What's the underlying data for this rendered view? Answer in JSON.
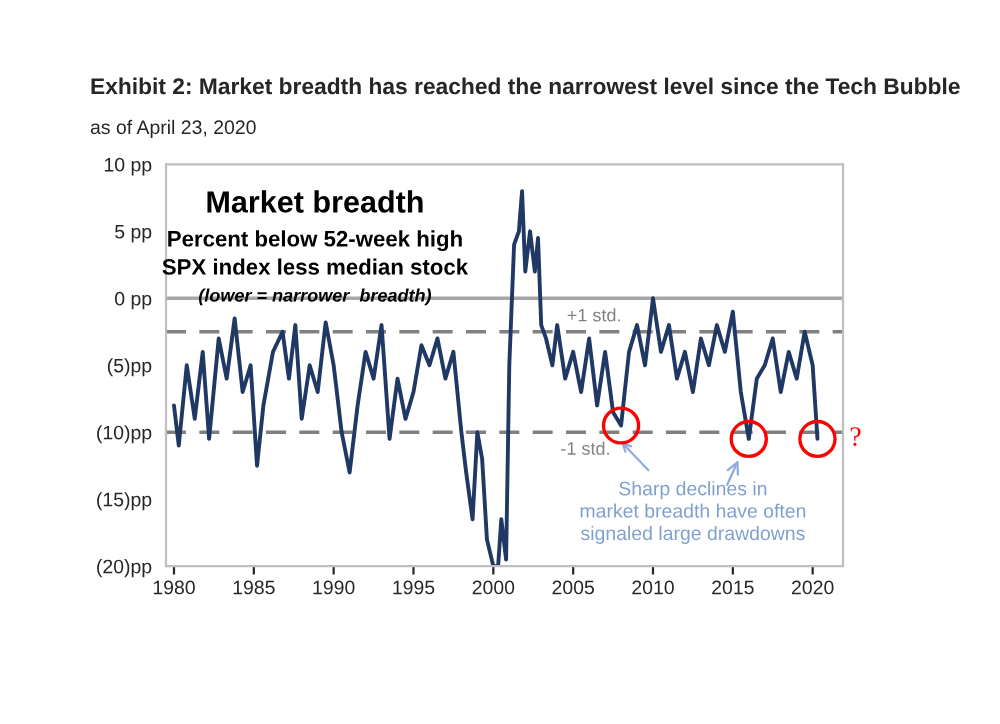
{
  "chart_data": {
    "type": "line",
    "title": "Exhibit 2: Market breadth has reached the narrowest level since the Tech Bubble",
    "subtitle": "as of April 23, 2020",
    "x": [
      1980.0,
      1980.3,
      1980.8,
      1981.3,
      1981.8,
      1982.2,
      1982.8,
      1983.3,
      1983.8,
      1984.3,
      1984.8,
      1985.2,
      1985.6,
      1986.2,
      1986.8,
      1987.2,
      1987.6,
      1988.0,
      1988.5,
      1989.0,
      1989.5,
      1990.0,
      1990.5,
      1991.0,
      1991.5,
      1992.0,
      1992.5,
      1993.0,
      1993.5,
      1994.0,
      1994.5,
      1995.0,
      1995.5,
      1996.0,
      1996.5,
      1997.0,
      1997.5,
      1998.0,
      1998.3,
      1998.7,
      1999.0,
      1999.3,
      1999.6,
      2000.0,
      2000.3,
      2000.5,
      2000.8,
      2001.0,
      2001.3,
      2001.6,
      2001.8,
      2002.0,
      2002.3,
      2002.6,
      2002.8,
      2003.0,
      2003.3,
      2003.7,
      2004.0,
      2004.5,
      2005.0,
      2005.5,
      2006.0,
      2006.5,
      2007.0,
      2007.5,
      2008.0,
      2008.5,
      2009.0,
      2009.5,
      2010.0,
      2010.5,
      2011.0,
      2011.5,
      2012.0,
      2012.5,
      2013.0,
      2013.5,
      2014.0,
      2014.5,
      2015.0,
      2015.5,
      2016.0,
      2016.5,
      2017.0,
      2017.5,
      2018.0,
      2018.5,
      2019.0,
      2019.5,
      2020.0,
      2020.3
    ],
    "series": [
      {
        "color": "#1f3864",
        "values": [
          -8,
          -11,
          -5,
          -9,
          -4,
          -10.5,
          -3,
          -6,
          -1.5,
          -7,
          -5,
          -12.5,
          -8,
          -4,
          -2.5,
          -6,
          -2,
          -9,
          -5,
          -7,
          -1.8,
          -5,
          -10,
          -13,
          -8,
          -4,
          -6,
          -2,
          -10.5,
          -6,
          -9,
          -7,
          -3.5,
          -5,
          -3,
          -6,
          -4,
          -10,
          -13,
          -16.5,
          -10,
          -12,
          -18,
          -20,
          -20,
          -16.5,
          -19.5,
          -5,
          4,
          5,
          8,
          2,
          5,
          2,
          4.5,
          -2,
          -3,
          -5,
          -2,
          -6,
          -4,
          -7,
          -3,
          -8,
          -4,
          -8.5,
          -9.5,
          -4,
          -2,
          -5,
          0,
          -4,
          -2,
          -6,
          -4,
          -7,
          -3,
          -5,
          -2,
          -4,
          -1,
          -7,
          -10.5,
          -6,
          -5,
          -3,
          -7,
          -4,
          -6,
          -2.5,
          -5,
          -10.5
        ]
      }
    ],
    "xlim": [
      1979.5,
      2021.9
    ],
    "ylim": [
      -20,
      10
    ],
    "xticks": [
      1980,
      1985,
      1990,
      1995,
      2000,
      2005,
      2010,
      2015,
      2020
    ],
    "yticks": [
      {
        "value": 10,
        "label": "10 pp"
      },
      {
        "value": 5,
        "label": "5 pp"
      },
      {
        "value": 0,
        "label": "0 pp"
      },
      {
        "value": -5,
        "label": "(5)pp"
      },
      {
        "value": -10,
        "label": "(10)pp"
      },
      {
        "value": -15,
        "label": "(15)pp"
      },
      {
        "value": -20,
        "label": "(20)pp"
      }
    ],
    "ref_lines": [
      {
        "axis": "y",
        "value": 0,
        "label": null,
        "color": "#a6a6a6",
        "line_style": "solid"
      },
      {
        "axis": "y",
        "value": -2.5,
        "label": "+1 std.",
        "color": "#808080",
        "line_style": "dashed"
      },
      {
        "axis": "y",
        "value": -10,
        "label": "-1 std.",
        "color": "#808080",
        "line_style": "dashed"
      }
    ],
    "annotations": [
      "Market breadth",
      "Percent below 52-week high",
      "SPX index less median stock",
      "(lower = narrower  breadth)",
      {
        "text": "Sharp declines in\nmarket breadth have often\nsignaled large drawdowns",
        "x": 2008.0,
        "y": -9.5
      },
      "?"
    ],
    "grid": false,
    "legend": false,
    "marker": "none",
    "line_style": "solid"
  }
}
